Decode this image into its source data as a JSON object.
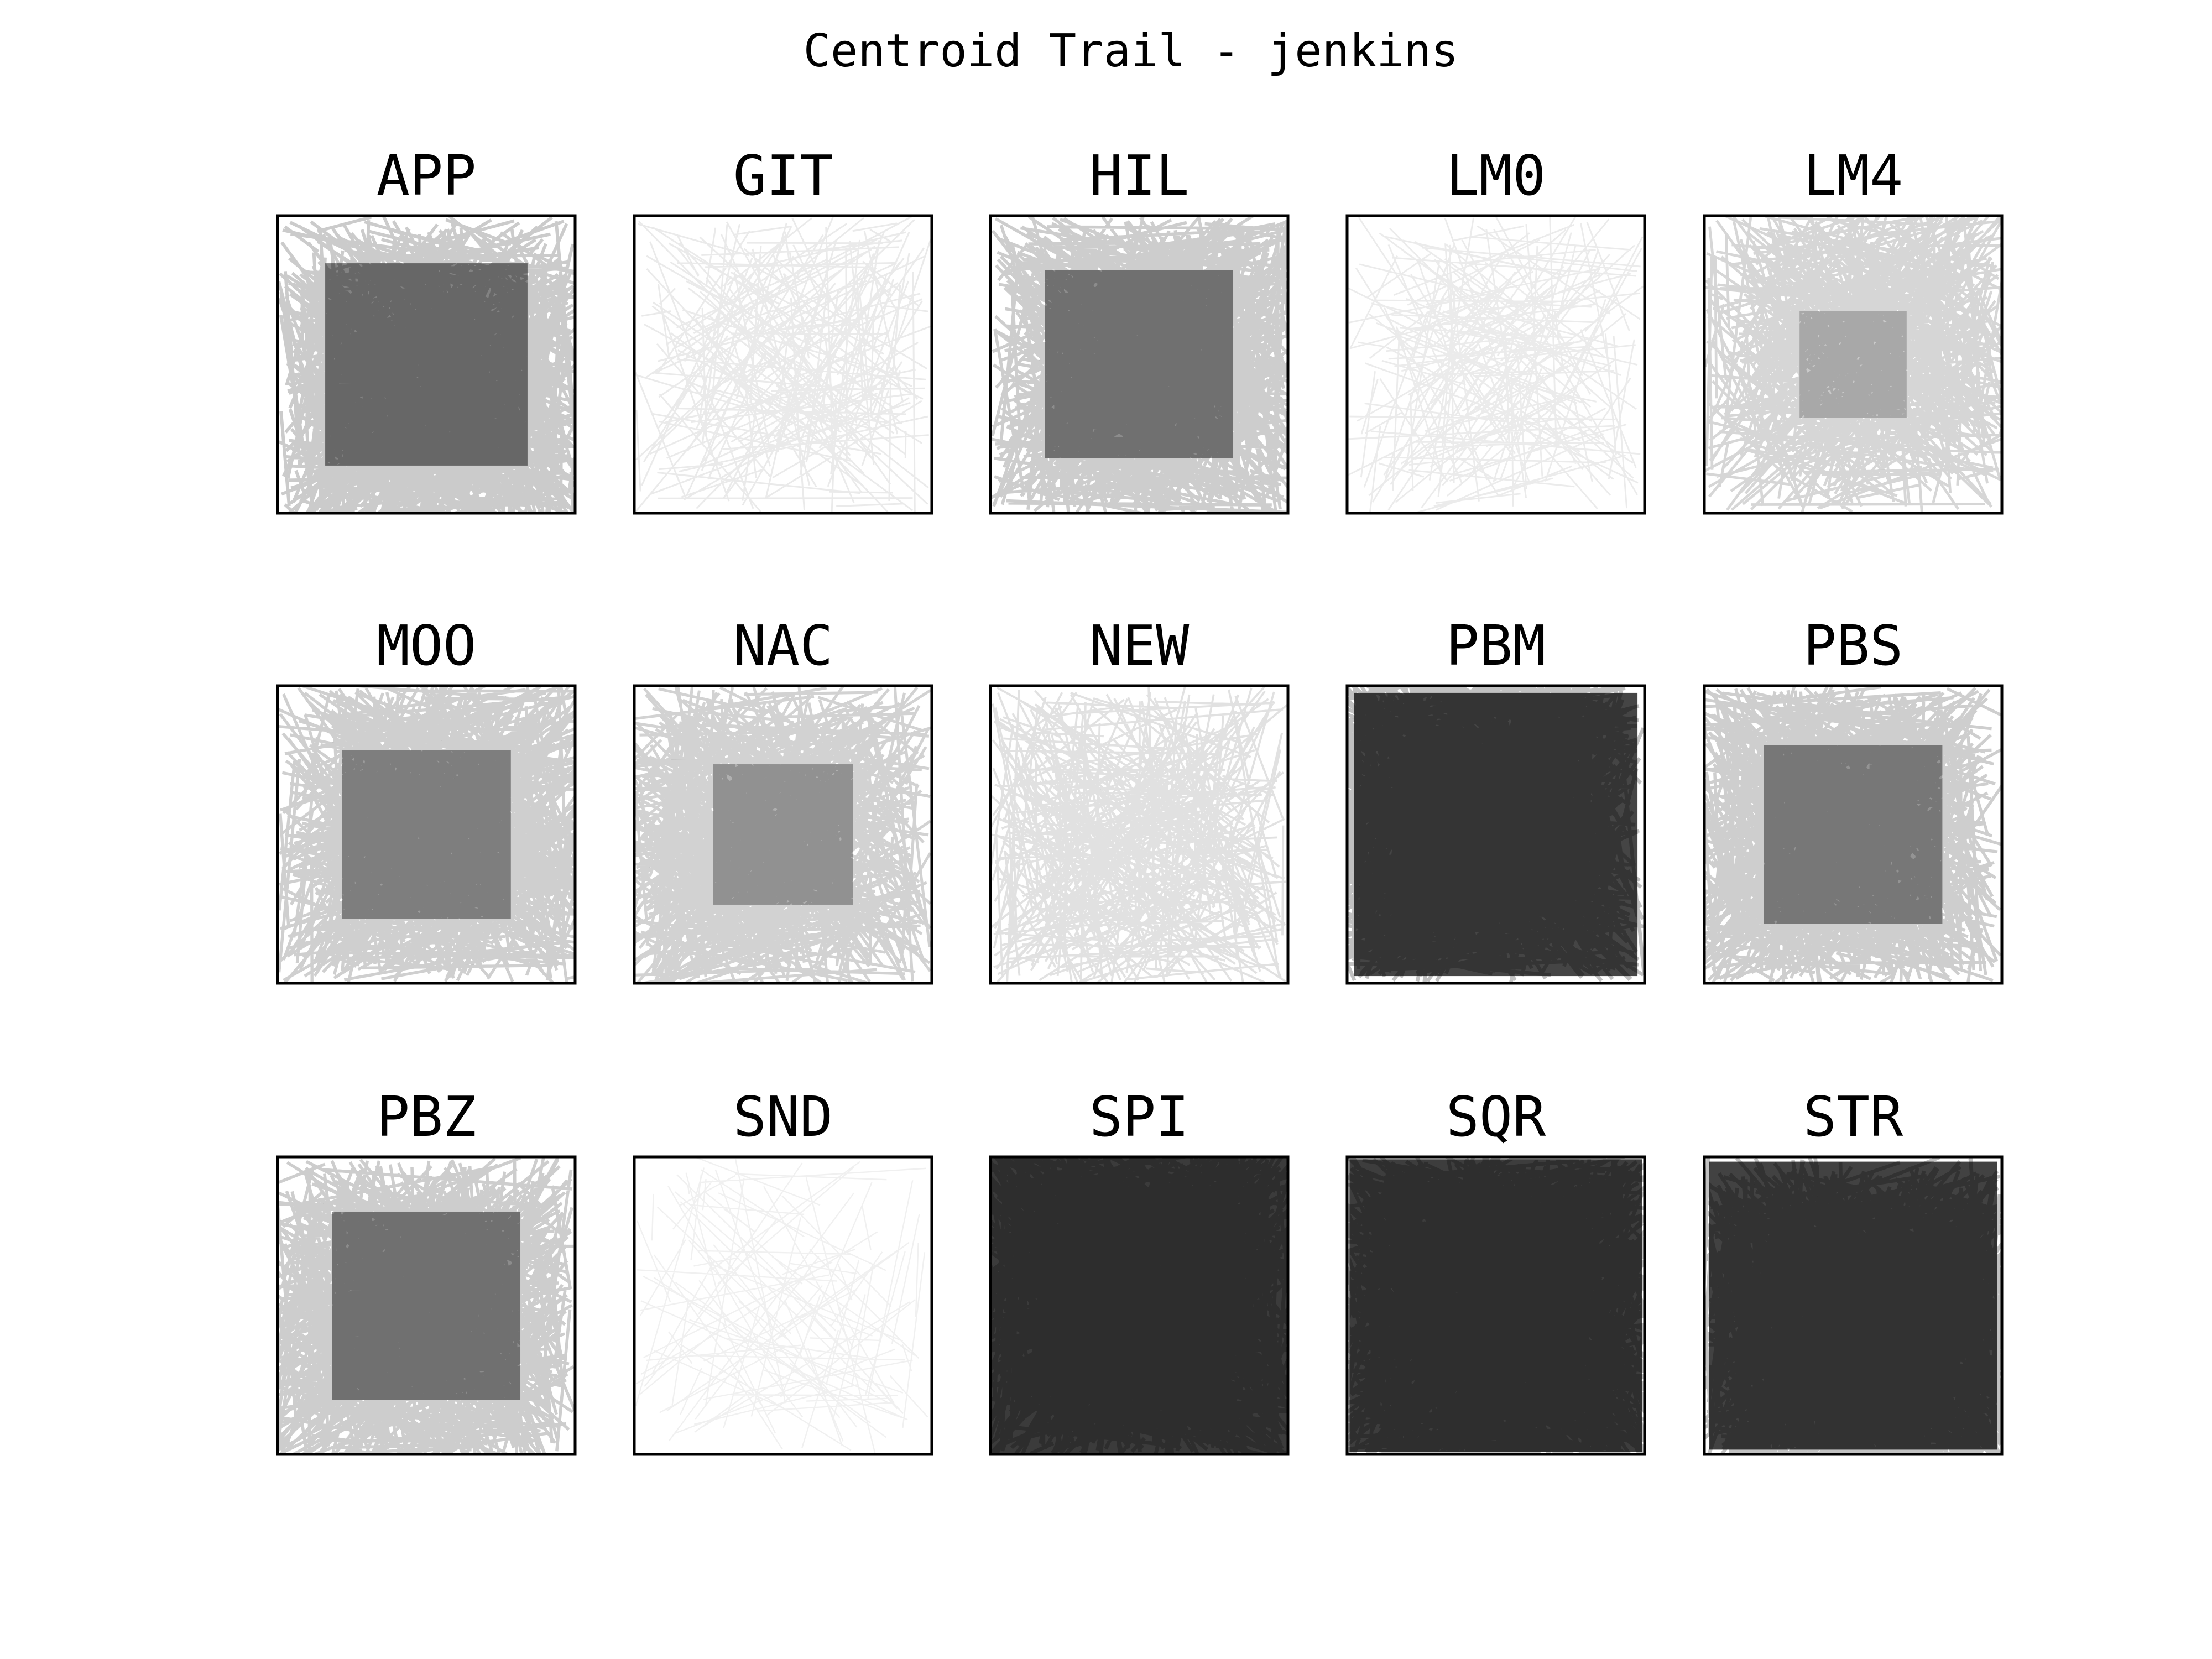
{
  "chart_data": {
    "type": "small-multiples",
    "title": "Centroid Trail - jenkins",
    "layout": {
      "rows": 3,
      "cols": 5
    },
    "axes_visible": false,
    "line_color": "#000000",
    "background": "#ffffff",
    "panels": [
      {
        "label": "APP",
        "ink_density": 0.75
      },
      {
        "label": "GIT",
        "ink_density": 0.2
      },
      {
        "label": "HIL",
        "ink_density": 0.72
      },
      {
        "label": "LM0",
        "ink_density": 0.18
      },
      {
        "label": "LM4",
        "ink_density": 0.55
      },
      {
        "label": "MOO",
        "ink_density": 0.68
      },
      {
        "label": "NAC",
        "ink_density": 0.62
      },
      {
        "label": "NEW",
        "ink_density": 0.35
      },
      {
        "label": "PBM",
        "ink_density": 0.92
      },
      {
        "label": "PBS",
        "ink_density": 0.7
      },
      {
        "label": "PBZ",
        "ink_density": 0.72
      },
      {
        "label": "SND",
        "ink_density": 0.08
      },
      {
        "label": "SPI",
        "ink_density": 0.95
      },
      {
        "label": "SQR",
        "ink_density": 0.94
      },
      {
        "label": "STR",
        "ink_density": 0.93
      }
    ]
  }
}
